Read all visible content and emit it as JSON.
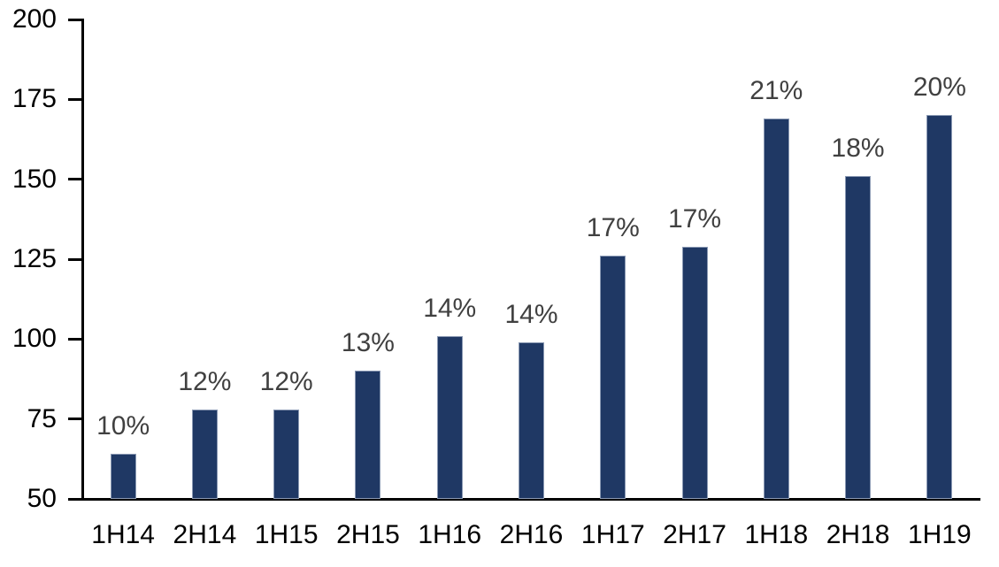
{
  "chart_data": {
    "type": "bar",
    "title": "",
    "xlabel": "",
    "ylabel": "",
    "categories": [
      "1H14",
      "2H14",
      "1H15",
      "2H15",
      "1H16",
      "2H16",
      "1H17",
      "2H17",
      "1H18",
      "2H18",
      "1H19"
    ],
    "values": [
      64,
      78,
      78,
      90,
      101,
      99,
      126,
      129,
      169,
      151,
      170
    ],
    "data_labels": [
      "10%",
      "12%",
      "12%",
      "13%",
      "14%",
      "14%",
      "17%",
      "17%",
      "21%",
      "18%",
      "20%"
    ],
    "ylim": [
      50,
      200
    ],
    "yticks": [
      50,
      75,
      100,
      125,
      150,
      175,
      200
    ],
    "grid": false,
    "legend": "none",
    "colors": {
      "bar_fill": "#1F3864",
      "bar_border": "#8A99B3",
      "data_label": "#404040",
      "axis": "#000000",
      "background": "#FFFFFF"
    }
  }
}
